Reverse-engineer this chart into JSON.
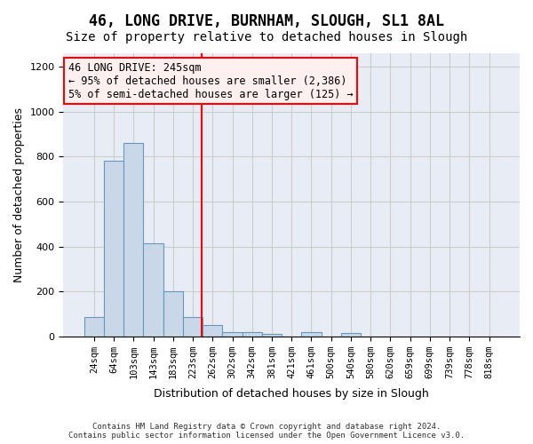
{
  "title": "46, LONG DRIVE, BURNHAM, SLOUGH, SL1 8AL",
  "subtitle": "Size of property relative to detached houses in Slough",
  "xlabel": "Distribution of detached houses by size in Slough",
  "ylabel": "Number of detached properties",
  "footnote": "Contains HM Land Registry data © Crown copyright and database right 2024.\nContains public sector information licensed under the Open Government Licence v3.0.",
  "bins": [
    "24sqm",
    "64sqm",
    "103sqm",
    "143sqm",
    "183sqm",
    "223sqm",
    "262sqm",
    "302sqm",
    "342sqm",
    "381sqm",
    "421sqm",
    "461sqm",
    "500sqm",
    "540sqm",
    "580sqm",
    "620sqm",
    "659sqm",
    "699sqm",
    "739sqm",
    "778sqm",
    "818sqm"
  ],
  "values": [
    85,
    780,
    860,
    415,
    200,
    85,
    50,
    20,
    20,
    10,
    0,
    20,
    0,
    15,
    0,
    0,
    0,
    0,
    0,
    0,
    0
  ],
  "bar_color": "#c8d8e8",
  "bar_edge_color": "#6699bb",
  "red_line_x": 5.45,
  "annotation_line1": "46 LONG DRIVE: 245sqm",
  "annotation_line2": "← 95% of detached houses are smaller (2,386)",
  "annotation_line3": "5% of semi-detached houses are larger (125) →",
  "annotation_box_facecolor": "#fff0f0",
  "annotation_box_edgecolor": "red",
  "ylim": [
    0,
    1260
  ],
  "yticks": [
    0,
    200,
    400,
    600,
    800,
    1000,
    1200
  ],
  "grid_color": "#cccccc",
  "background_color": "#e8ecf5",
  "title_fontsize": 12,
  "subtitle_fontsize": 10,
  "xlabel_fontsize": 9,
  "ylabel_fontsize": 9
}
